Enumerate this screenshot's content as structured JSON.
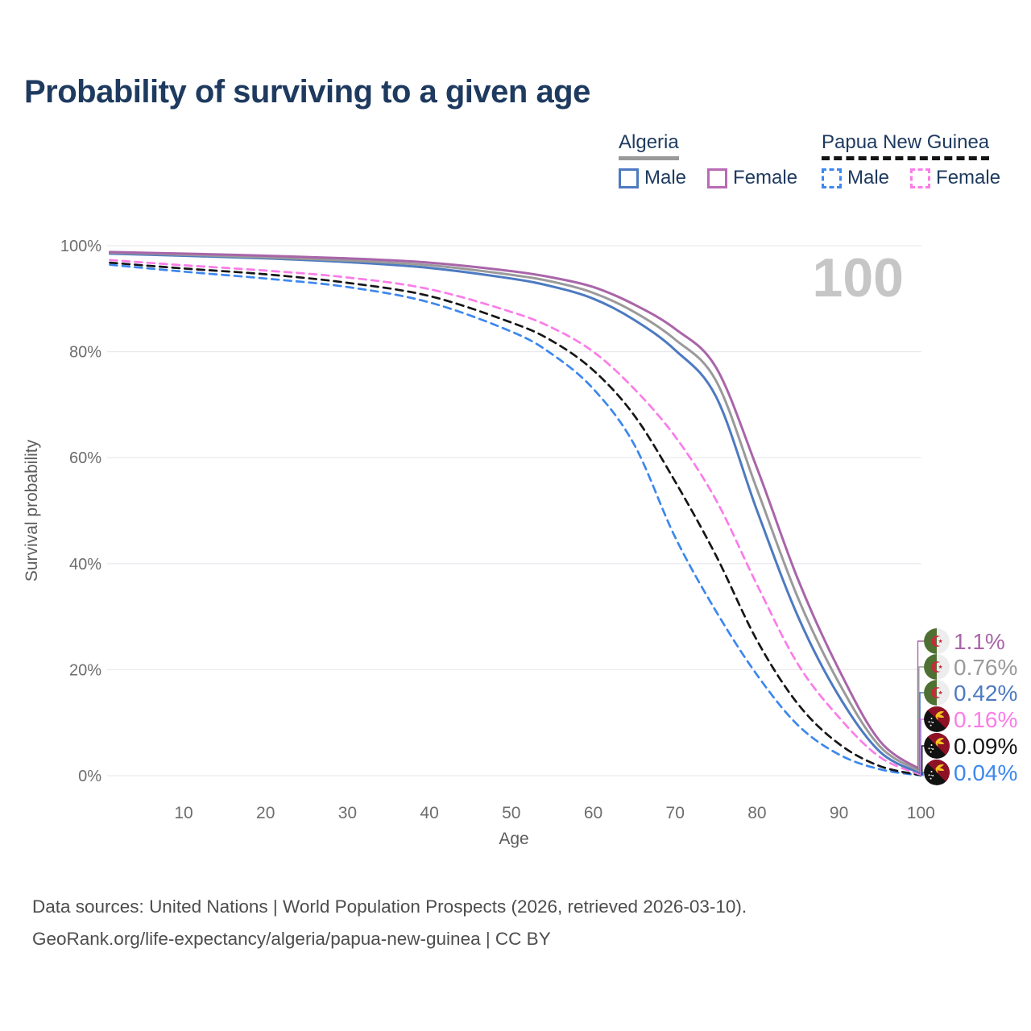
{
  "title": "Probability of surviving to a given age",
  "legend": {
    "groups": [
      {
        "name": "Algeria",
        "underline_style": "solid",
        "underline_color": "#9a9a9a",
        "items": [
          {
            "label": "Male",
            "color": "#4d7ac1",
            "dash": false
          },
          {
            "label": "Female",
            "color": "#b86ab4",
            "dash": false
          }
        ]
      },
      {
        "name": "Papua New Guinea",
        "underline_style": "dashed",
        "underline_color": "#141414",
        "items": [
          {
            "label": "Male",
            "color": "#3d87ee",
            "dash": true
          },
          {
            "label": "Female",
            "color": "#fb7ce8",
            "dash": true
          }
        ]
      }
    ]
  },
  "chart_data": {
    "type": "line",
    "xlabel": "Age",
    "ylabel": "Survival probability",
    "age_marker": "100",
    "xlim": [
      1,
      100
    ],
    "ylim": [
      0,
      100
    ],
    "x_ticks": [
      10,
      20,
      30,
      40,
      50,
      60,
      70,
      80,
      90,
      100
    ],
    "y_ticks": [
      0,
      20,
      40,
      60,
      80,
      100
    ],
    "y_tick_labels": [
      "0%",
      "20%",
      "40%",
      "60%",
      "80%",
      "100%"
    ],
    "grid": "horizontal",
    "legend_position": "top-right",
    "x": [
      1,
      10,
      20,
      30,
      40,
      50,
      55,
      60,
      65,
      70,
      75,
      80,
      85,
      90,
      95,
      100
    ],
    "series": [
      {
        "name": "Algeria Female",
        "country": "Algeria",
        "sex": "Female",
        "style": "solid",
        "color": "#a965a9",
        "flag": "algeria",
        "end_label": "1.1%",
        "end_value": 1.1,
        "values": [
          98.8,
          98.5,
          98.1,
          97.6,
          96.8,
          95.2,
          94.0,
          92.2,
          88.9,
          84.3,
          77.0,
          58.0,
          37.0,
          20.0,
          6.5,
          1.1
        ]
      },
      {
        "name": "Algeria Both sexes",
        "country": "Algeria",
        "sex": "Both",
        "style": "solid",
        "color": "#9a9a9a",
        "flag": "algeria",
        "end_label": "0.76%",
        "end_value": 0.76,
        "values": [
          98.7,
          98.3,
          97.8,
          97.2,
          96.3,
          94.5,
          93.2,
          91.1,
          87.5,
          82.3,
          74.5,
          54.0,
          33.5,
          17.5,
          5.5,
          0.76
        ]
      },
      {
        "name": "Algeria Male",
        "country": "Algeria",
        "sex": "Male",
        "style": "solid",
        "color": "#4d7ac1",
        "flag": "algeria",
        "end_label": "0.42%",
        "end_value": 0.42,
        "values": [
          98.5,
          98.1,
          97.6,
          96.9,
          95.8,
          93.8,
          92.3,
          90.0,
          86.0,
          80.3,
          71.5,
          50.0,
          30.0,
          15.0,
          4.5,
          0.42
        ]
      },
      {
        "name": "Papua New Guinea Female",
        "country": "Papua New Guinea",
        "sex": "Female",
        "style": "dashed",
        "color": "#fb7ce8",
        "flag": "papua-new-guinea",
        "end_label": "0.16%",
        "end_value": 0.16,
        "values": [
          97.3,
          96.3,
          95.3,
          94.0,
          91.8,
          87.5,
          84.5,
          80.0,
          73.0,
          64.0,
          52.0,
          36.0,
          21.0,
          11.0,
          3.5,
          0.16
        ]
      },
      {
        "name": "Papua New Guinea Both sexes",
        "country": "Papua New Guinea",
        "sex": "Both",
        "style": "dashed",
        "color": "#161616",
        "flag": "papua-new-guinea",
        "end_label": "0.09%",
        "end_value": 0.09,
        "values": [
          96.8,
          95.7,
          94.6,
          93.0,
          90.5,
          85.5,
          82.0,
          76.5,
          68.0,
          55.5,
          41.5,
          25.5,
          13.5,
          6.0,
          1.8,
          0.09
        ]
      },
      {
        "name": "Papua New Guinea Male",
        "country": "Papua New Guinea",
        "sex": "Male",
        "style": "dashed",
        "color": "#3d87ee",
        "flag": "papua-new-guinea",
        "end_label": "0.04%",
        "end_value": 0.04,
        "values": [
          96.4,
          95.1,
          93.8,
          92.2,
          89.3,
          83.8,
          79.5,
          73.0,
          62.5,
          45.0,
          31.0,
          19.0,
          9.5,
          4.0,
          1.2,
          0.04
        ]
      }
    ]
  },
  "footer": {
    "line1": "Data sources: United Nations | World Population Prospects (2026, retrieved 2026-03-10).",
    "line2": "GeoRank.org/life-expectancy/algeria/papua-new-guinea | CC BY"
  }
}
